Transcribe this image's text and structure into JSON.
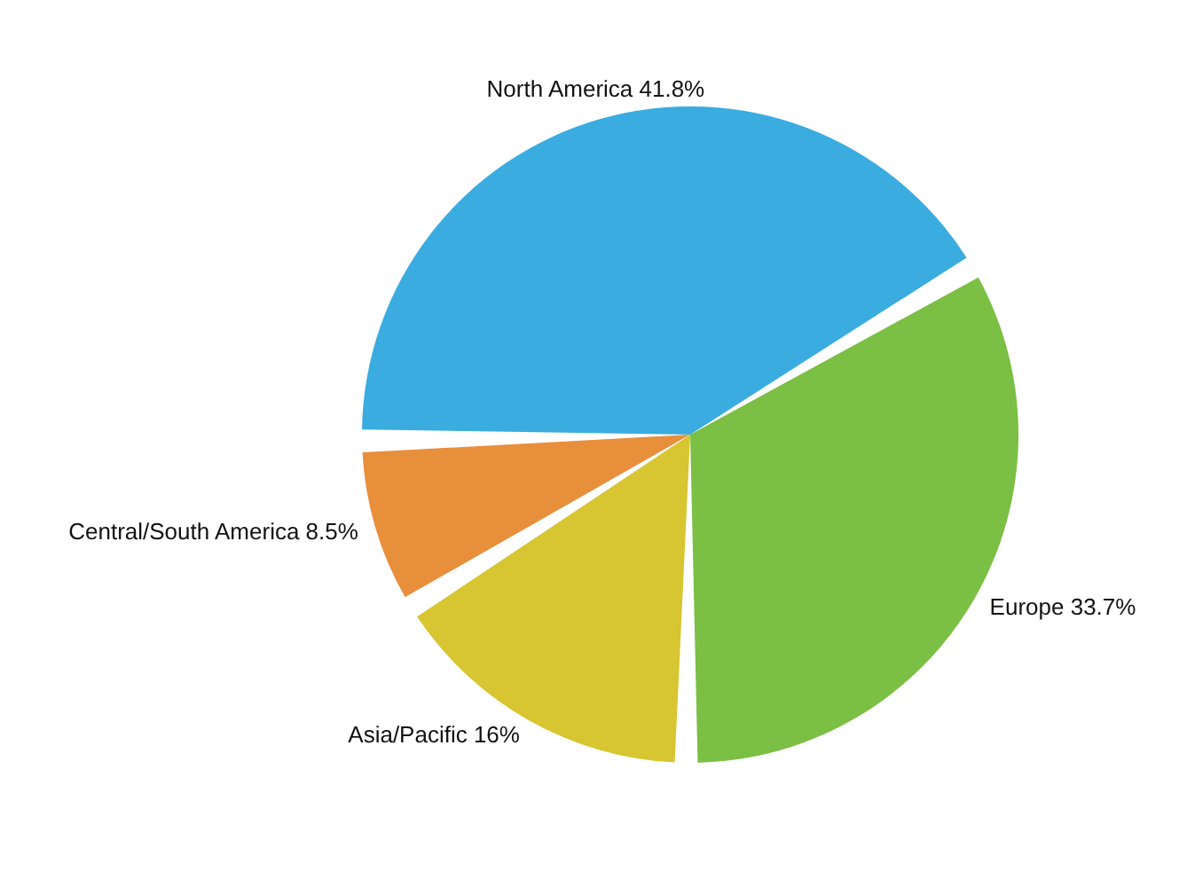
{
  "chart_data": {
    "type": "pie",
    "categories": [
      "North America",
      "Europe",
      "Asia/Pacific",
      "Central/South America"
    ],
    "values": [
      41.8,
      33.7,
      16,
      8.5
    ],
    "value_labels": [
      "41.8%",
      "33.7%",
      "16%",
      "8.5%"
    ],
    "colors": [
      "#3aace0",
      "#7bbf44",
      "#d7c531",
      "#e88f3c"
    ]
  }
}
